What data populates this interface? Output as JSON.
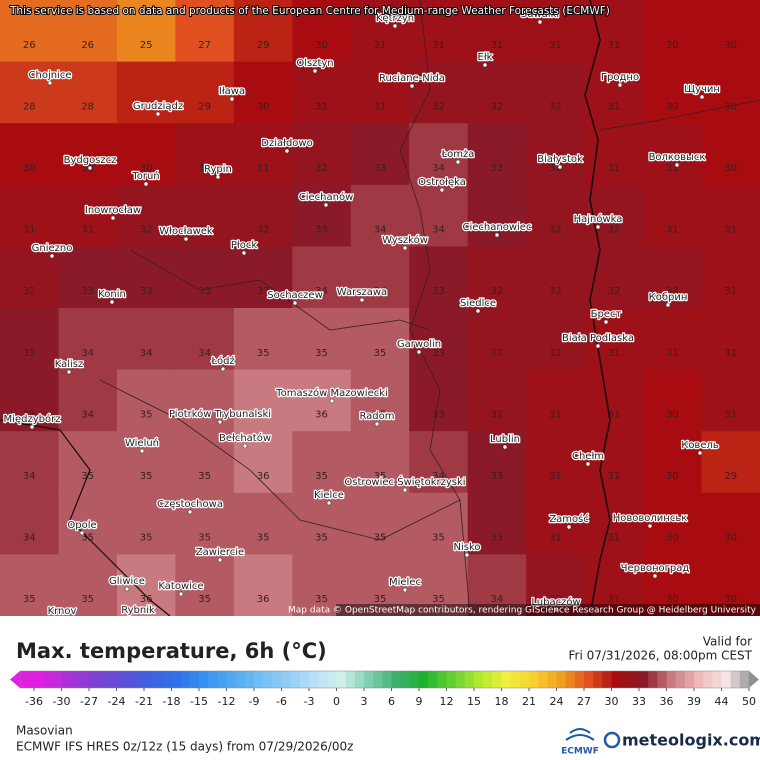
{
  "header": {
    "notice": "This service is based on data and products of the European Centre for Medium-range Weather Forecasts (ECMWF)"
  },
  "map": {
    "attribution": "Map data © OpenStreetMap contributors, rendering GIScience Research Group @ Heidelberg University",
    "cities": [
      "Kętrzyn",
      "Suwałki",
      "Chojnice",
      "Olsztyn",
      "Ruciane-Nida",
      "Ełk",
      "Гродно",
      "Щучин",
      "Grudziądz",
      "Iława",
      "Działdowo",
      "Łomża",
      "Białystok",
      "Волковыск",
      "Bydgoszcz",
      "Toruń",
      "Rypin",
      "Ostrołęka",
      "Ciechanów",
      "Hajnówka",
      "Inowrocław",
      "Włocławek",
      "Ciechanowiec",
      "Płock",
      "Wyszków",
      "Gniezno",
      "Konin",
      "Sochaczew",
      "Warszawa",
      "Siedlce",
      "Кобрин",
      "Брест",
      "Biała Podlaska",
      "Garwolin",
      "Kalisz",
      "Łódź",
      "Tomaszów Mazowiecki",
      "Piotrków Trybunalski",
      "Radom",
      "Międzybórz",
      "Bełchatów",
      "Wieluń",
      "Lublin",
      "Ковель",
      "Chełm",
      "Ostrowiec Świętokrzyski",
      "Częstochowa",
      "Kielce",
      "Zamość",
      "Нововолинськ",
      "Opole",
      "Zawiercie",
      "Nisko",
      "Червоноград",
      "Gliwice",
      "Katowice",
      "Mielec",
      "Krnov",
      "Rybnik",
      "Lubaczów"
    ],
    "temperature_grid": [
      [
        26,
        26,
        25,
        27,
        29,
        30,
        31,
        31,
        31,
        31,
        31,
        30,
        30
      ],
      [
        28,
        28,
        29,
        29,
        30,
        31,
        31,
        32,
        32,
        32,
        31,
        30,
        30
      ],
      [
        30,
        30,
        30,
        31,
        31,
        32,
        33,
        34,
        33,
        32,
        31,
        31,
        30
      ],
      [
        31,
        31,
        32,
        32,
        32,
        33,
        34,
        34,
        33,
        32,
        32,
        31,
        31
      ],
      [
        32,
        33,
        33,
        33,
        33,
        34,
        34,
        33,
        32,
        32,
        32,
        32,
        31
      ],
      [
        33,
        34,
        34,
        34,
        35,
        35,
        35,
        33,
        32,
        32,
        31,
        31,
        31
      ],
      [
        33,
        34,
        35,
        35,
        36,
        36,
        35,
        33,
        32,
        31,
        31,
        30,
        31
      ],
      [
        34,
        35,
        35,
        35,
        36,
        35,
        35,
        34,
        33,
        31,
        31,
        30,
        29
      ],
      [
        34,
        35,
        35,
        35,
        35,
        35,
        35,
        35,
        33,
        31,
        31,
        30,
        30
      ],
      [
        35,
        35,
        36,
        35,
        36,
        35,
        35,
        35,
        34,
        32,
        31,
        30,
        30
      ]
    ]
  },
  "footer": {
    "title": "Max. temperature, 6h (°C)",
    "valid_label": "Valid for",
    "valid_time": "Fri 07/31/2026, 08:00pm CEST",
    "region": "Masovian",
    "model_info": "ECMWF IFS HRES 0z/12z (15 days) from 07/29/2026/00z",
    "ecmwf_logo": "ECMWF",
    "brand": "meteologix.com"
  },
  "legend": {
    "ticks": [
      -36,
      -30,
      -27,
      -24,
      -21,
      -18,
      -15,
      -12,
      -9,
      -6,
      -3,
      0,
      3,
      6,
      9,
      12,
      15,
      18,
      21,
      24,
      27,
      30,
      33,
      36,
      39,
      44,
      50
    ],
    "colors": [
      "#e020e0",
      "#b030d8",
      "#8040d0",
      "#6050d8",
      "#4060e0",
      "#3070e8",
      "#3890f0",
      "#50a8f0",
      "#70bcf4",
      "#90ccf6",
      "#b8e0f8",
      "#d0f0e8",
      "#80d0b0",
      "#40b070",
      "#20b030",
      "#60d030",
      "#b0e830",
      "#f0f040",
      "#f8d030",
      "#f0a020",
      "#e05020",
      "#a80c10",
      "#8a1a28",
      "#c87a80",
      "#f0b8b8",
      "#f4e4e4",
      "#909090"
    ]
  }
}
